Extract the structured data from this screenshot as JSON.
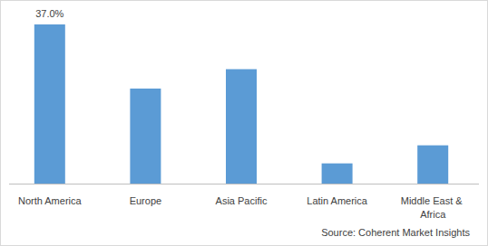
{
  "chart_data": {
    "type": "bar",
    "categories": [
      "North America",
      "Europe",
      "Asia Pacific",
      "Latin America",
      "Middle East & Africa"
    ],
    "values": [
      37.0,
      22.1,
      26.6,
      4.7,
      8.9
    ],
    "value_labels": [
      "37.0%",
      null,
      null,
      null,
      null
    ],
    "data_labels": true,
    "color": "#5b9bd5",
    "ylim": [
      0,
      41
    ],
    "tick_labels": "x",
    "grid": false,
    "source": "Source: Coherent Market Insights"
  }
}
